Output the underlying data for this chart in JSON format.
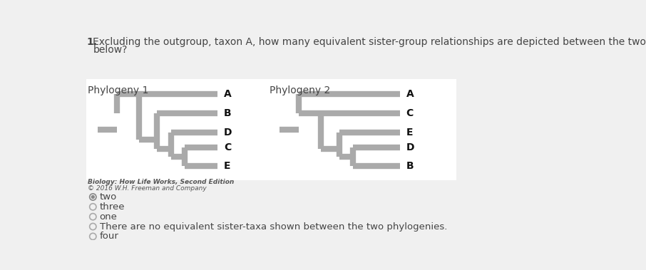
{
  "phylo1_label": "Phylogeny 1",
  "phylo2_label": "Phylogeny 2",
  "citation_line1": "Biology: How Life Works, Second Edition",
  "citation_line2": "© 2016 W.H. Freeman and Company",
  "question_number": "1.",
  "question_text1": "Excluding the outgroup, taxon A, how many equivalent sister-group relationships are depicted between the two phylogenies given",
  "question_text2": "below?",
  "options": [
    {
      "text": "two",
      "selected": true
    },
    {
      "text": "three",
      "selected": false
    },
    {
      "text": "one",
      "selected": false
    },
    {
      "text": "There are no equivalent sister-taxa shown between the two phylogenies.",
      "selected": false
    },
    {
      "text": "four",
      "selected": false
    }
  ],
  "bg_color": "#f0f0f0",
  "white_box_color": "#ffffff",
  "tree_color": "#aaaaaa",
  "text_color": "#444444",
  "label_color": "#111111",
  "radio_color": "#888888",
  "citation_color": "#555555",
  "line_width": 6,
  "p1_taxa": [
    "A",
    "B",
    "D",
    "C",
    "E"
  ],
  "p2_taxa": [
    "A",
    "C",
    "E",
    "D",
    "B"
  ]
}
